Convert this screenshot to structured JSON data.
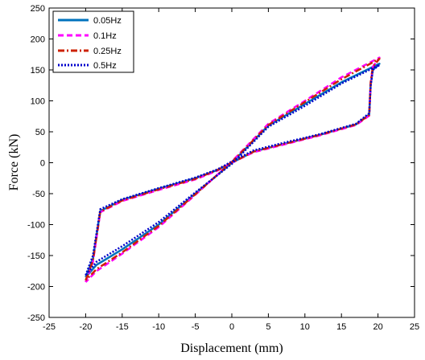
{
  "chart_data": {
    "type": "line",
    "title": "",
    "xlabel": "Displacement (mm)",
    "ylabel": "Force (kN)",
    "xlim": [
      -25,
      25
    ],
    "ylim": [
      -250,
      250
    ],
    "xticks": [
      -25,
      -20,
      -15,
      -10,
      -5,
      0,
      5,
      10,
      15,
      20,
      25
    ],
    "xtick_labels": [
      "-25",
      "-20",
      "-15",
      "-10",
      "-5",
      "0",
      "5",
      "10",
      "15",
      "20",
      "25"
    ],
    "yticks": [
      -250,
      -200,
      -150,
      -100,
      -50,
      0,
      50,
      100,
      150,
      200,
      250
    ],
    "ytick_labels": [
      "-250",
      "-200",
      "-150",
      "-100",
      "-50",
      "0",
      "50",
      "100",
      "150",
      "200",
      "250"
    ],
    "grid": false,
    "legend_position": "top-left",
    "series": [
      {
        "name": "0.05Hz",
        "color": "#0072BD",
        "dash": "solid",
        "x": [
          -20,
          -19,
          -18,
          -15,
          -10,
          -5,
          -2,
          0,
          3,
          7,
          12,
          17,
          18.8,
          19,
          19.3,
          20.2,
          20.2,
          15,
          10,
          5,
          0,
          -5,
          -10,
          -15,
          -18.5,
          -20
        ],
        "y": [
          -185,
          -155,
          -78,
          -60,
          -42,
          -25,
          -12,
          0,
          18,
          30,
          45,
          62,
          78,
          125,
          150,
          160,
          160,
          130,
          95,
          60,
          0,
          -50,
          -100,
          -140,
          -165,
          -185
        ]
      },
      {
        "name": "0.1Hz",
        "color": "#FF00FF",
        "dash": "dashed",
        "x": [
          -20,
          -19,
          -18,
          -15,
          -10,
          -5,
          -2,
          0,
          3,
          7,
          12,
          17,
          18.8,
          19,
          19.3,
          20.2,
          20.2,
          15,
          10,
          5,
          0,
          -5,
          -10,
          -15,
          -18.5,
          -20
        ],
        "y": [
          -193,
          -160,
          -80,
          -62,
          -44,
          -27,
          -13,
          0,
          17,
          29,
          44,
          61,
          76,
          128,
          155,
          170,
          170,
          138,
          100,
          63,
          2,
          -52,
          -104,
          -147,
          -175,
          -193
        ]
      },
      {
        "name": "0.25Hz",
        "color": "#CC2200",
        "dash": "dashdot",
        "x": [
          -20,
          -19,
          -18,
          -15,
          -10,
          -5,
          -2,
          0,
          3,
          7,
          12,
          17,
          18.8,
          19,
          19.3,
          20.2,
          20.2,
          15,
          10,
          5,
          0,
          -5,
          -10,
          -15,
          -18.5,
          -20
        ],
        "y": [
          -190,
          -158,
          -79,
          -61,
          -43,
          -26,
          -12,
          0,
          18,
          30,
          45,
          62,
          77,
          130,
          155,
          168,
          168,
          135,
          98,
          61,
          1,
          -51,
          -102,
          -145,
          -172,
          -190
        ]
      },
      {
        "name": "0.5Hz",
        "color": "#0000CC",
        "dash": "dotted",
        "x": [
          -20,
          -19,
          -18,
          -15,
          -10,
          -5,
          -2,
          0,
          3,
          7,
          12,
          17,
          18.8,
          19,
          19.3,
          20.2,
          20.2,
          15,
          10,
          5,
          0,
          -5,
          -10,
          -15,
          -18.5,
          -20
        ],
        "y": [
          -182,
          -150,
          -75,
          -59,
          -41,
          -24,
          -11,
          2,
          20,
          32,
          46,
          63,
          80,
          125,
          150,
          158,
          158,
          128,
          92,
          58,
          -2,
          -48,
          -96,
          -135,
          -160,
          -182
        ]
      }
    ]
  }
}
